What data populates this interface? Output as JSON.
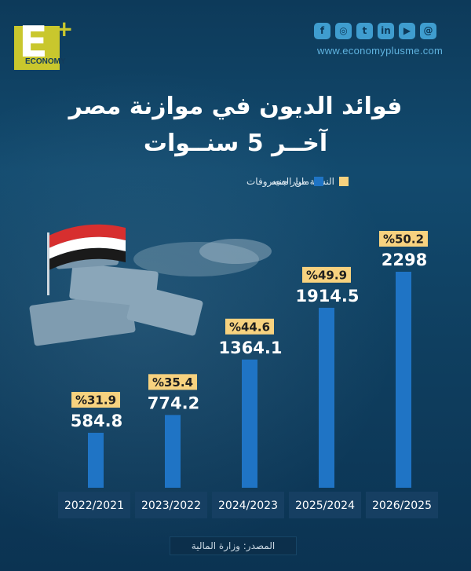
{
  "brand": {
    "logo_letter": "E",
    "logo_plus": "+",
    "logo_word": "ECONOMY",
    "website": "www.economyplusme.com",
    "social_icons": [
      {
        "icon": "facebook-icon",
        "glyph": "f"
      },
      {
        "icon": "instagram-icon",
        "glyph": "◎"
      },
      {
        "icon": "twitter-icon",
        "glyph": "t"
      },
      {
        "icon": "linkedin-icon",
        "glyph": "in"
      },
      {
        "icon": "youtube-icon",
        "glyph": "▶"
      },
      {
        "icon": "threads-icon",
        "glyph": "@"
      }
    ]
  },
  "header": {
    "title_line1": "فوائد الديون في موازنة مصر",
    "title_line2": "آخــر 5 سنــوات"
  },
  "legend": {
    "series_values": "مليار جنيه",
    "series_percent": "النسبة من المصروفات"
  },
  "footer": {
    "source": "المصدر: وزارة المالية"
  },
  "colors": {
    "bar": "#1f74c5",
    "category_box": "#163f62",
    "percent_box": "#f7d27f",
    "background": "#0f3f60"
  },
  "chart_data": {
    "type": "bar",
    "title": "فوائد الديون في موازنة مصر آخر 5 سنوات",
    "categories": [
      "2022/2021",
      "2023/2022",
      "2024/2023",
      "2025/2024",
      "2026/2025"
    ],
    "series": [
      {
        "name": "مليار جنيه",
        "values": [
          584.8,
          774.2,
          1364.1,
          1914.5,
          2298
        ]
      },
      {
        "name": "النسبة من المصروفات",
        "values": [
          31.9,
          35.4,
          44.6,
          49.9,
          50.2
        ],
        "labels": [
          "%31.9",
          "%35.4",
          "%44.6",
          "%49.9",
          "%50.2"
        ]
      }
    ],
    "value_labels": [
      "584.8",
      "774.2",
      "1364.1",
      "1914.5",
      "2298"
    ],
    "xlabel": "",
    "ylabel": "مليار جنيه",
    "ylim": [
      0,
      2298
    ],
    "grid": false,
    "legend_position": "top-right"
  }
}
